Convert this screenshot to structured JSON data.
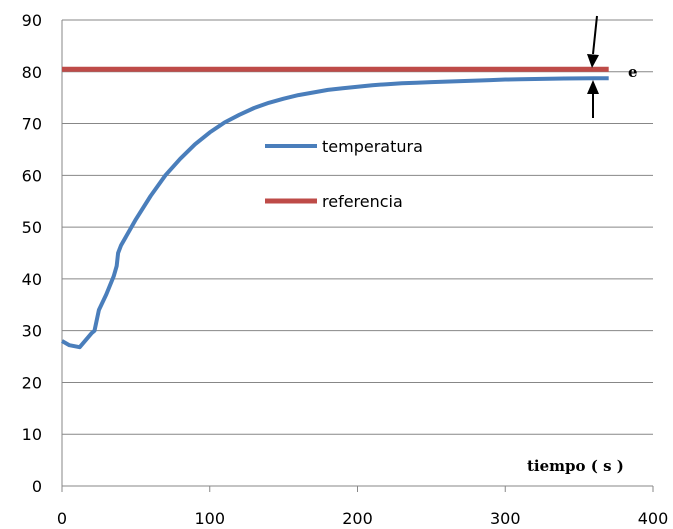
{
  "chart_data": {
    "type": "line",
    "title": "",
    "xlabel": "tiempo ( s )",
    "ylabel": "",
    "xlim": [
      0,
      400
    ],
    "ylim": [
      0,
      90
    ],
    "x_ticks": [
      0,
      100,
      200,
      300,
      400
    ],
    "y_ticks": [
      0,
      10,
      20,
      30,
      40,
      50,
      60,
      70,
      80,
      90
    ],
    "grid": "horizontal",
    "legend_position": "center",
    "error_label": "e",
    "series": [
      {
        "name": "temperatura",
        "color": "#4a7ebb",
        "x": [
          0,
          5,
          12,
          20,
          22,
          25,
          30,
          35,
          37,
          38,
          40,
          45,
          50,
          60,
          70,
          80,
          90,
          100,
          110,
          120,
          130,
          140,
          150,
          160,
          170,
          180,
          190,
          200,
          210,
          220,
          230,
          240,
          250,
          260,
          270,
          280,
          290,
          300,
          310,
          320,
          330,
          340,
          350,
          360,
          370
        ],
        "y": [
          28,
          27.2,
          26.8,
          29.5,
          30,
          34,
          37,
          40.5,
          42.5,
          45,
          46.5,
          49,
          51.5,
          56,
          60,
          63.2,
          66,
          68.3,
          70.2,
          71.7,
          73,
          74,
          74.8,
          75.5,
          76,
          76.5,
          76.8,
          77.1,
          77.4,
          77.6,
          77.8,
          77.9,
          78,
          78.1,
          78.2,
          78.3,
          78.4,
          78.5,
          78.55,
          78.6,
          78.65,
          78.7,
          78.72,
          78.74,
          78.75
        ]
      },
      {
        "name": "referencia",
        "color": "#be4b48",
        "x": [
          0,
          370
        ],
        "y": [
          80.5,
          80.5
        ]
      }
    ]
  }
}
